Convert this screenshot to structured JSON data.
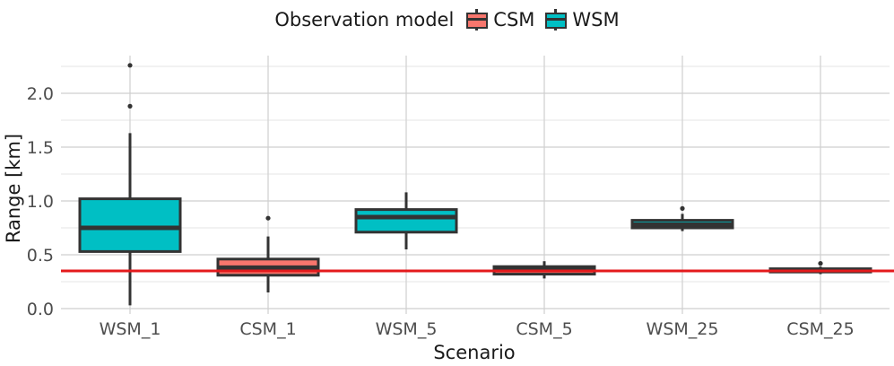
{
  "legend": {
    "title": "Observation model",
    "items": [
      {
        "label": "CSM",
        "color": "#F8766D"
      },
      {
        "label": "WSM",
        "color": "#00BFC4"
      }
    ]
  },
  "chart_data": {
    "type": "boxplot",
    "title": "",
    "xlabel": "Scenario",
    "ylabel": "Range [km]",
    "ylim": [
      -0.05,
      2.35
    ],
    "yticks": [
      0.0,
      0.5,
      1.0,
      1.5,
      2.0
    ],
    "ytick_labels": [
      "0.0",
      "0.5",
      "1.0",
      "1.5",
      "2.0"
    ],
    "categories": [
      "WSM_1",
      "CSM_1",
      "WSM_5",
      "CSM_5",
      "WSM_25",
      "CSM_25"
    ],
    "reference_line": {
      "y": 0.35,
      "color": "#E41A1C"
    },
    "boxes": [
      {
        "category": "WSM_1",
        "model": "WSM",
        "color": "#00BFC4",
        "whisker_low": 0.03,
        "q1": 0.53,
        "median": 0.75,
        "q3": 1.02,
        "whisker_high": 1.63,
        "outliers": [
          1.88,
          2.26
        ]
      },
      {
        "category": "CSM_1",
        "model": "CSM",
        "color": "#F8766D",
        "whisker_low": 0.15,
        "q1": 0.31,
        "median": 0.38,
        "q3": 0.46,
        "whisker_high": 0.67,
        "outliers": [
          0.84
        ]
      },
      {
        "category": "WSM_5",
        "model": "WSM",
        "color": "#00BFC4",
        "whisker_low": 0.55,
        "q1": 0.71,
        "median": 0.85,
        "q3": 0.92,
        "whisker_high": 1.08,
        "outliers": []
      },
      {
        "category": "CSM_5",
        "model": "CSM",
        "color": "#F8766D",
        "whisker_low": 0.28,
        "q1": 0.32,
        "median": 0.36,
        "q3": 0.39,
        "whisker_high": 0.44,
        "outliers": []
      },
      {
        "category": "WSM_25",
        "model": "WSM",
        "color": "#00BFC4",
        "whisker_low": 0.72,
        "q1": 0.75,
        "median": 0.78,
        "q3": 0.82,
        "whisker_high": 0.88,
        "outliers": [
          0.93
        ]
      },
      {
        "category": "CSM_25",
        "model": "CSM",
        "color": "#F8766D",
        "whisker_low": 0.32,
        "q1": 0.34,
        "median": 0.355,
        "q3": 0.37,
        "whisker_high": 0.39,
        "outliers": [
          0.42
        ]
      }
    ]
  }
}
